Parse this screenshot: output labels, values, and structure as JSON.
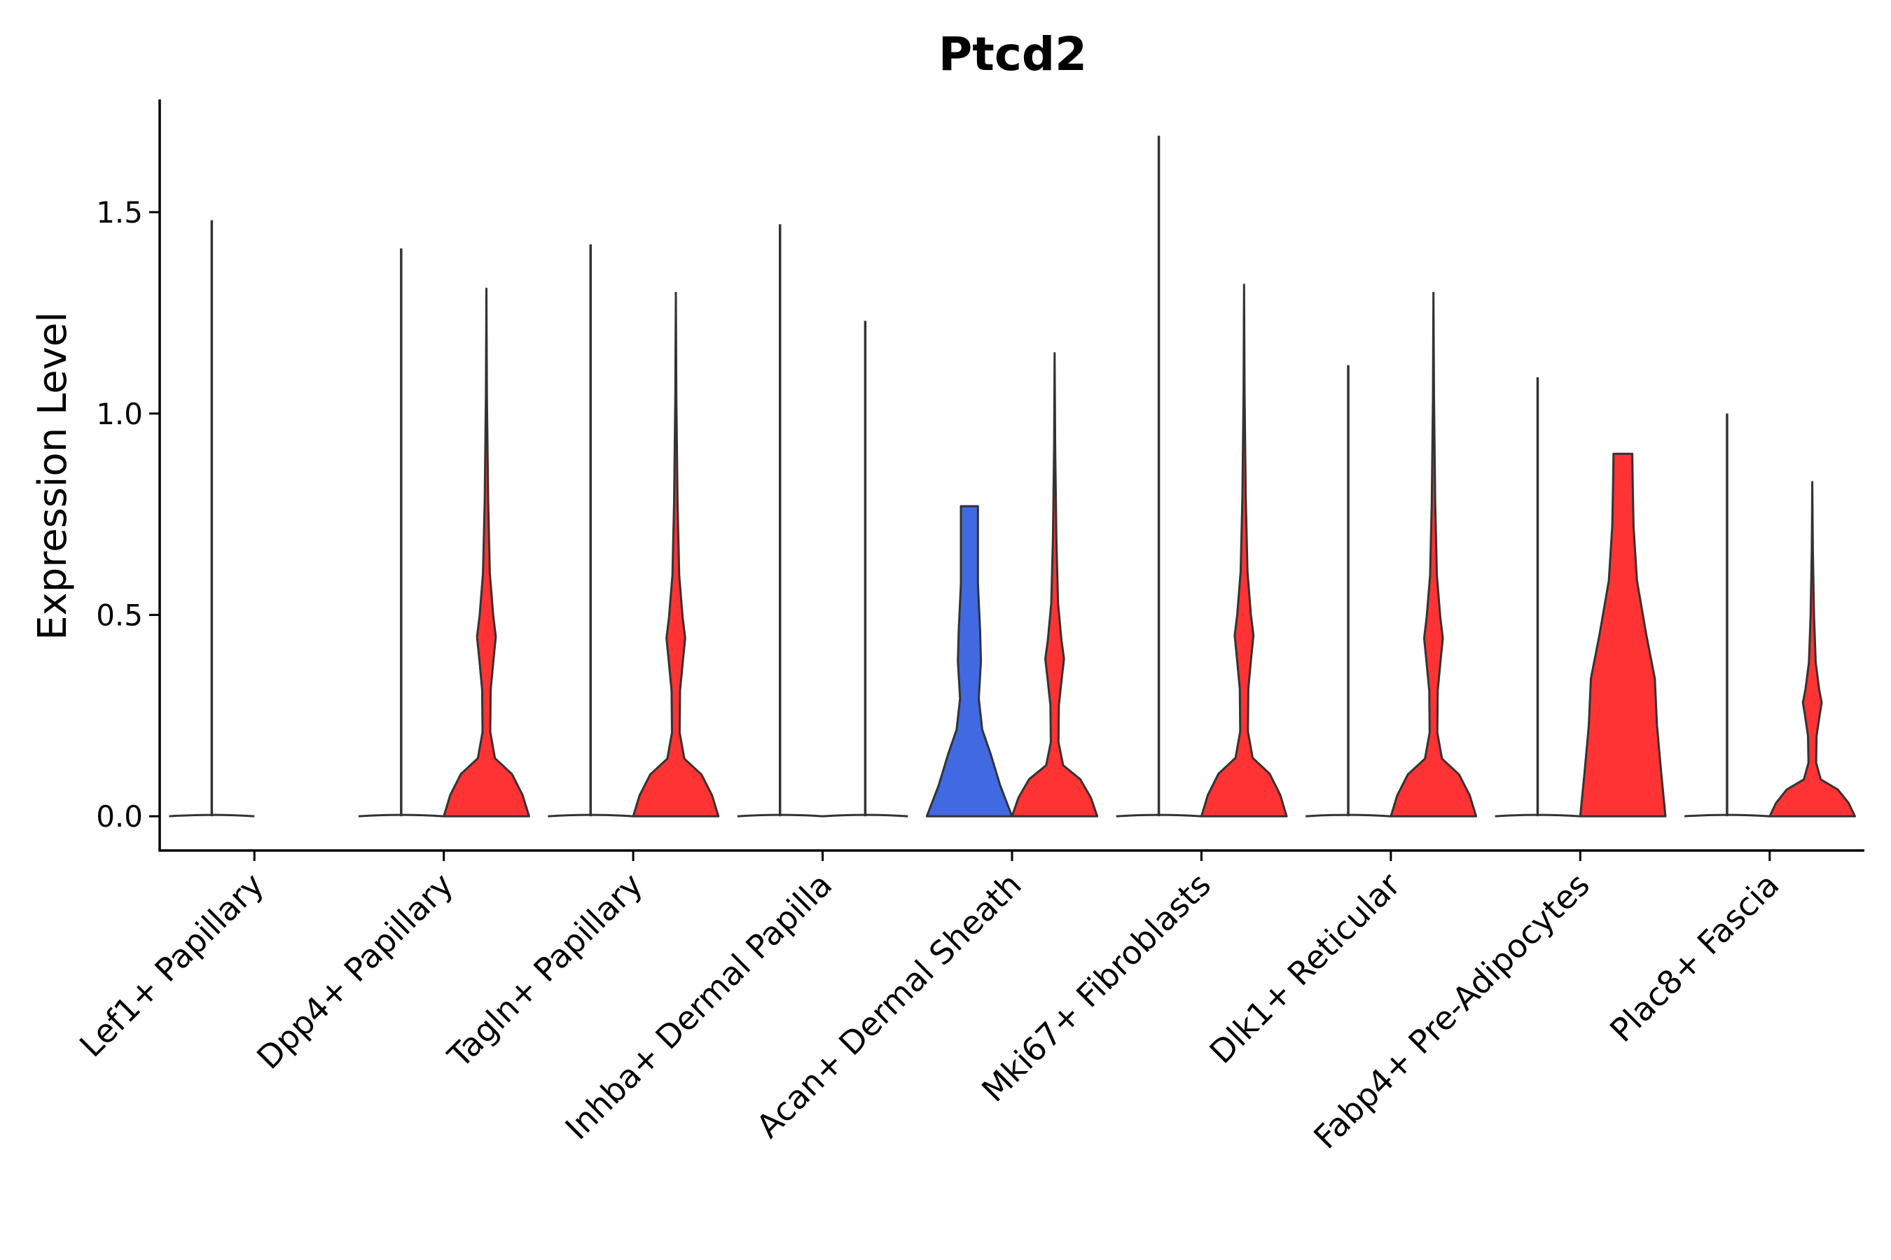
{
  "chart_data": {
    "type": "violin",
    "title": "Ptcd2",
    "xlabel": "",
    "ylabel": "Expression Level",
    "ylim": [
      -0.085,
      1.78
    ],
    "yticks": [
      "0.0",
      "0.5",
      "1.0",
      "1.5"
    ],
    "colors": {
      "group1": "#4169e1",
      "group2": "#ff3333",
      "outline": "#333333"
    },
    "categories": [
      "Lef1+ Papillary",
      "Dpp4+ Papillary",
      "Tagln+ Papillary",
      "Inhba+ Dermal Papilla",
      "Acan+ Dermal Sheath",
      "Mki67+ Fibroblasts",
      "Dlk1+ Reticular",
      "Fabp4+ Pre-Adipocytes",
      "Plac8+ Fascia"
    ],
    "series": [
      {
        "name": "group1",
        "max_values": [
          1.48,
          1.41,
          1.42,
          1.47,
          0.77,
          1.69,
          1.12,
          1.09,
          1.0
        ],
        "shapes": [
          "spike",
          "spike",
          "spike",
          "spike",
          "blob",
          "spike",
          "spike",
          "spike",
          "spike"
        ]
      },
      {
        "name": "group2",
        "max_values": [
          null,
          1.31,
          1.3,
          1.23,
          1.15,
          1.32,
          1.3,
          0.9,
          0.83
        ],
        "shapes": [
          "none",
          "bimodal",
          "bimodal",
          "spike",
          "bimodal",
          "bimodal",
          "bimodal",
          "broad",
          "bimodal"
        ]
      }
    ]
  }
}
